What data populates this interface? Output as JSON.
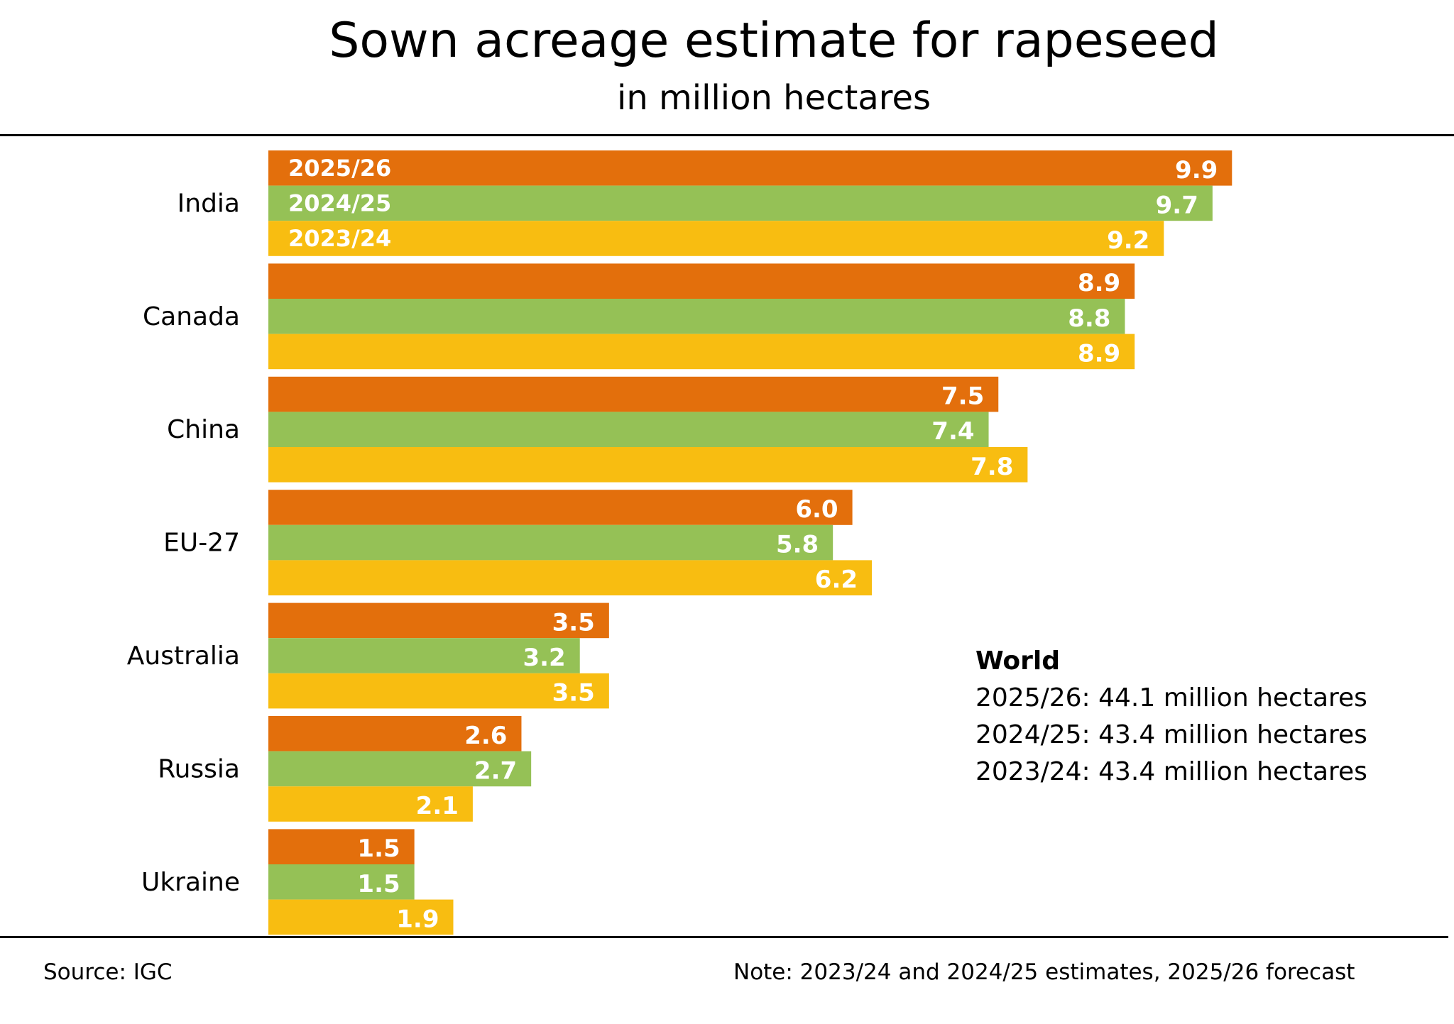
{
  "chart_data": {
    "type": "bar",
    "orientation": "horizontal",
    "title": "Sown acreage estimate for rapeseed",
    "subtitle": "in million hectares",
    "xlabel": "",
    "ylabel": "",
    "xlim": [
      0,
      10
    ],
    "grid": false,
    "categories": [
      "India",
      "Canada",
      "China",
      "EU-27",
      "Australia",
      "Russia",
      "Ukraine"
    ],
    "series": [
      {
        "name": "2025/26",
        "color": "#E36F0C",
        "values": [
          9.9,
          8.9,
          7.5,
          6.0,
          3.5,
          2.6,
          1.5
        ]
      },
      {
        "name": "2024/25",
        "color": "#95C156",
        "values": [
          9.7,
          8.8,
          7.4,
          5.8,
          3.2,
          2.7,
          1.5
        ]
      },
      {
        "name": "2023/24",
        "color": "#F8BD11",
        "values": [
          9.2,
          8.9,
          7.8,
          6.2,
          3.5,
          2.1,
          1.9
        ]
      }
    ],
    "legend": "inside first category bars (top-left)",
    "annotations": {
      "world_heading": "World",
      "world_lines": [
        "2025/26: 44.1 million hectares",
        "2024/25: 43.4 million hectares",
        "2023/24: 43.4 million hectares"
      ]
    },
    "source": "Source: IGC",
    "note": "Note: 2023/24 and 2024/25 estimates, 2025/26 forecast"
  }
}
